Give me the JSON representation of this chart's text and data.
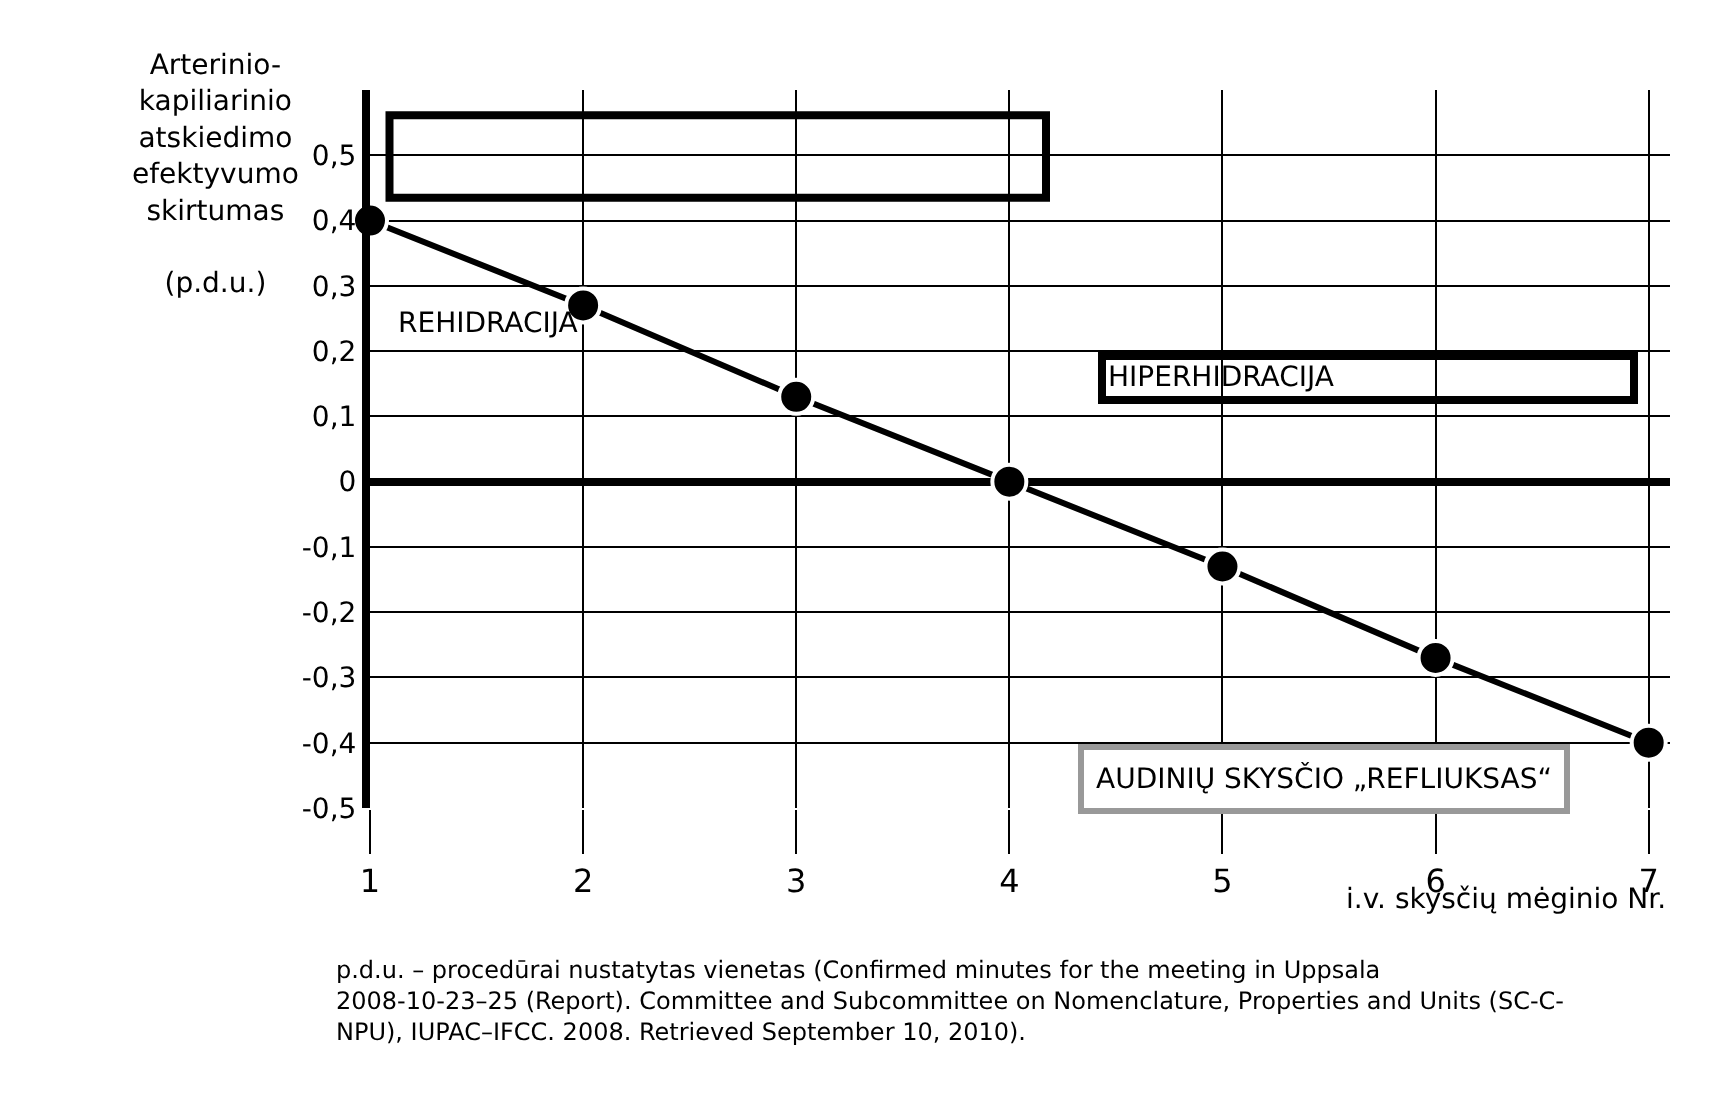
{
  "chart_data": {
    "type": "line",
    "xlabel": "i.v. skysčių mėginio Nr.",
    "ylabel": "Arterinio-\nkapiliarinio\natskiedimo\nefektyvumo\nskirtumas\n\n(p.d.u.)",
    "x": [
      1,
      2,
      3,
      4,
      5,
      6,
      7
    ],
    "series": [
      {
        "color": "#000000",
        "values": [
          0.4,
          0.27,
          0.13,
          0,
          -0.13,
          -0.27,
          -0.4
        ]
      }
    ],
    "xlim": [
      1,
      7.1
    ],
    "xticks": [
      1,
      2,
      3,
      4,
      5,
      6,
      7
    ],
    "ylim": [
      -0.5,
      0.6
    ],
    "yticks": [
      {
        "value": -0.5,
        "label": "-0,5"
      },
      {
        "value": -0.4,
        "label": "-0,4"
      },
      {
        "value": -0.3,
        "label": "-0,3"
      },
      {
        "value": -0.2,
        "label": "-0,2"
      },
      {
        "value": -0.1,
        "label": "-0,1"
      },
      0,
      {
        "value": 0.1,
        "label": "0,1"
      },
      {
        "value": 0.2,
        "label": "0,2"
      },
      {
        "value": 0.3,
        "label": "0,3"
      },
      {
        "value": 0.4,
        "label": "0,4"
      },
      {
        "value": 0.5,
        "label": "0,5"
      }
    ],
    "annotations": [
      "REHIDRACIJA",
      "HIPERHIDRACIJA",
      "AUDINIŲ SKYSČIO „REFLIUKSAS“",
      "p.d.u. – procedūrai nustatytas vienetas (Confirmed minutes for the meeting in Uppsala 2008-10-23–25 (Report). Committee and Subcommittee on Nomenclature, Properties and Units (SC-C-NPU), IUPAC–IFCC. 2008. Retrieved September 10, 2010)."
    ],
    "grid": true,
    "legend": false,
    "marker": "circle",
    "line_style": "solid"
  }
}
